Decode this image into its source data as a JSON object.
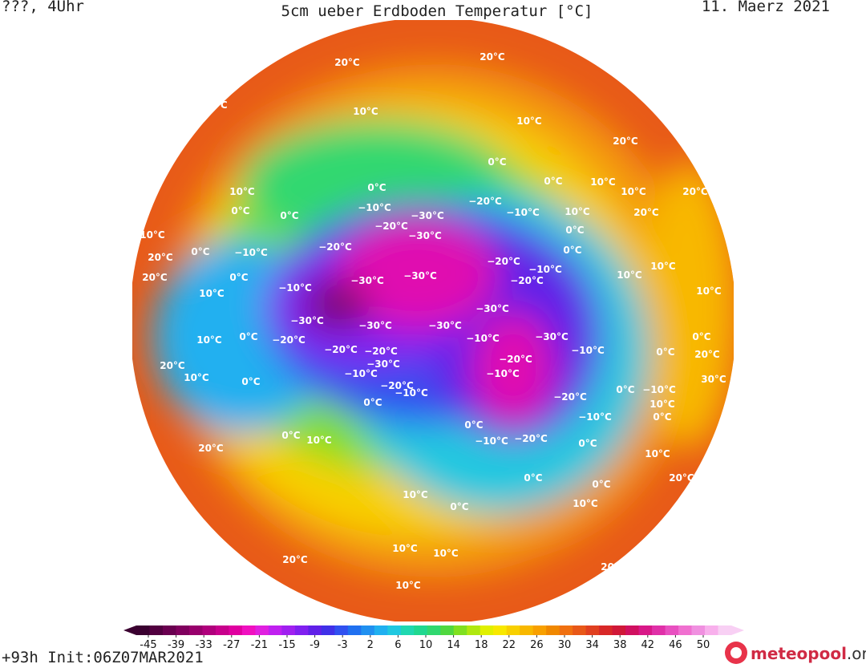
{
  "header": {
    "left": "???, 4Uhr",
    "title": "5cm ueber Erdboden Temperatur [°C]",
    "date": "11. Maerz 2021"
  },
  "footer": {
    "run": "+93h Init:06Z07MAR2021",
    "logo": "meteopool",
    ".org": ".org"
  },
  "colorbar": {
    "ticks": [
      -45,
      -39,
      -33,
      -27,
      -21,
      -15,
      -9,
      -3,
      2,
      6,
      10,
      14,
      18,
      22,
      26,
      30,
      34,
      38,
      42,
      46,
      50
    ],
    "colors": [
      "#3a0030",
      "#520040",
      "#6a0050",
      "#80005e",
      "#98006c",
      "#b0007c",
      "#c8008c",
      "#e000a0",
      "#f010c0",
      "#e020e0",
      "#c020f0",
      "#a020f0",
      "#8020f0",
      "#6020e8",
      "#4030e8",
      "#3050f0",
      "#2070f0",
      "#2090f0",
      "#20b0f0",
      "#20c8e0",
      "#20d8b0",
      "#20d890",
      "#30d870",
      "#50d840",
      "#80e020",
      "#b0e810",
      "#e0f000",
      "#f8e800",
      "#f8d000",
      "#f8b800",
      "#f8a000",
      "#f08800",
      "#f07010",
      "#e85818",
      "#e04020",
      "#d82828",
      "#d01838",
      "#d01060",
      "#d81888",
      "#e030a8",
      "#e850c0",
      "#f070d0",
      "#f090e0",
      "#f8b0ec",
      "#f8d0f4"
    ]
  },
  "contour_labels": [
    "20°C",
    "20°C",
    "20°C",
    "10°C",
    "10°C",
    "20°C",
    "0°C",
    "0°C",
    "10°C",
    "0°C",
    "−10°C",
    "−20°C",
    "−30°C",
    "−10°C",
    "0°C",
    "10°C",
    "0°C",
    "−10°C",
    "−20°C",
    "−30°C",
    "−20°C",
    "20°C",
    "20°C",
    "0°C",
    "−10°C",
    "−30°C",
    "−30°C",
    "−20°C",
    "−10°C",
    "−20°C",
    "10°C",
    "−30°C",
    "−30°C",
    "−30°C",
    "−30°C",
    "−30°C",
    "−10°C",
    "−10°C",
    "10°C",
    "0°C",
    "−20°C",
    "−20°C",
    "−20°C",
    "−30°C",
    "−10°C",
    "−20°C",
    "−10°C",
    "0°C",
    "−20°C",
    "−10°C",
    "−20°C",
    "−10°C",
    "0°C",
    "20°C",
    "10°C",
    "0°C",
    "10°C",
    "−10°C",
    "−20°C",
    "0°C",
    "20°C",
    "0°C",
    "0°C",
    "0°C",
    "10°C",
    "0°C",
    "10°C",
    "10°C",
    "20°C",
    "10°C",
    "10°C",
    "20°C",
    "20°C",
    "10°C",
    "30°C",
    "20°C",
    "10°C",
    "10°C",
    "10°C",
    "0°C",
    "0°C",
    "20°C",
    "20°C",
    "10°C",
    "10°C",
    "0°C",
    "0°C",
    "0°C",
    "10°C",
    "−10°C",
    "0°C",
    "10°C",
    "0°C"
  ]
}
